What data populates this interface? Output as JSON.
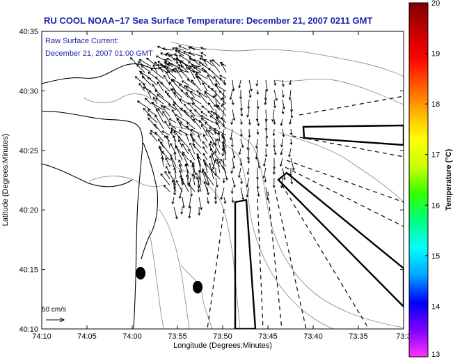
{
  "title": "RU COOL  NOAA−17  Sea Surface Temperature:  December 21, 2007 0211 GMT",
  "current_label": "Raw Surface Current:",
  "current_time": "December 21, 2007 01:00 GMT",
  "x_axis": {
    "label": "Longitude (Degrees:Minutes)",
    "ticks": [
      "74:10",
      "74:05",
      "74:00",
      "73:55",
      "73:50",
      "73:45",
      "73:40",
      "73:35",
      "73:3"
    ]
  },
  "y_axis": {
    "label": "Latitude (Degrees:Minutes)",
    "ticks": [
      "40:35",
      "40:30",
      "40:25",
      "40:20",
      "40:15",
      "40:10"
    ]
  },
  "colorbar": {
    "label": "Temperature (°C)",
    "ticks": [
      "20",
      "19",
      "18",
      "17",
      "16",
      "15",
      "14",
      "13"
    ],
    "range": [
      13,
      20
    ],
    "colors": [
      "#ff33ff",
      "#7b00ff",
      "#0000ff",
      "#00a6ff",
      "#00ffff",
      "#00ff80",
      "#33ff00",
      "#ccff00",
      "#ffff00",
      "#ffb000",
      "#ff5500",
      "#ff0000",
      "#c00000",
      "#800000"
    ]
  },
  "scale_bar": {
    "label": "50 cm/s"
  },
  "colors": {
    "title": "#1f24a8",
    "coast": "#000000",
    "contour": "#909090",
    "arrows": "#000000"
  }
}
